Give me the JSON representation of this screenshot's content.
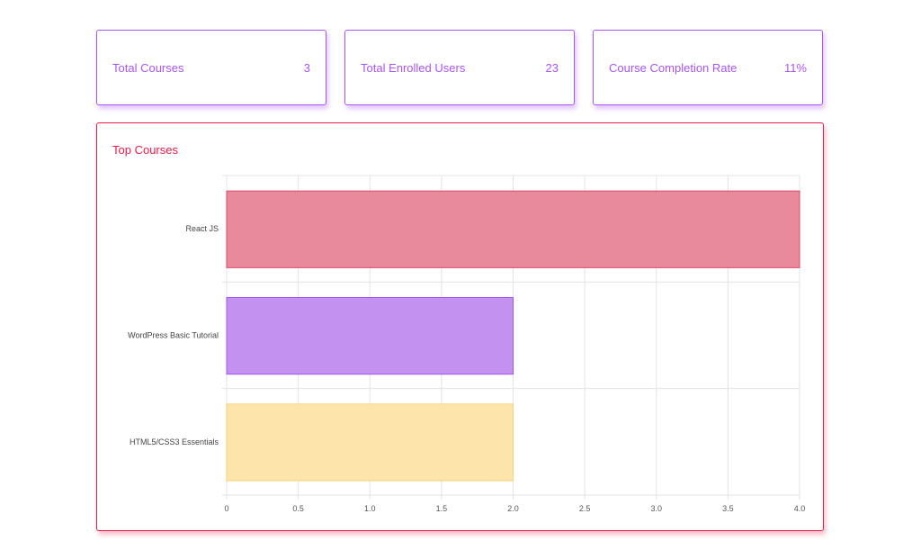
{
  "stats": {
    "total_courses": {
      "label": "Total Courses",
      "value": "3"
    },
    "total_users": {
      "label": "Total Enrolled Users",
      "value": "23"
    },
    "completion_rate": {
      "label": "Course Completion Rate",
      "value": "11%"
    }
  },
  "colors": {
    "stat_accent": "#a855f7",
    "chart_accent": "#e11d48"
  },
  "chart_data": {
    "type": "bar",
    "orientation": "horizontal",
    "title": "Top Courses",
    "categories": [
      "React JS",
      "WordPress Basic Tutorial",
      "HTML5/CSS3 Essentials"
    ],
    "values": [
      4,
      2,
      2
    ],
    "bar_colors": [
      "#e98a9c",
      "#c392f0",
      "#fde4aa"
    ],
    "bar_borders": [
      "#d94b68",
      "#a855f7",
      "#f6d27a"
    ],
    "xlim": [
      0,
      4
    ],
    "xticks": [
      "0",
      "0.5",
      "1.0",
      "1.5",
      "2.0",
      "2.5",
      "3.0",
      "3.5",
      "4.0"
    ],
    "xlabel": "",
    "ylabel": "",
    "grid": true,
    "legend": false
  }
}
